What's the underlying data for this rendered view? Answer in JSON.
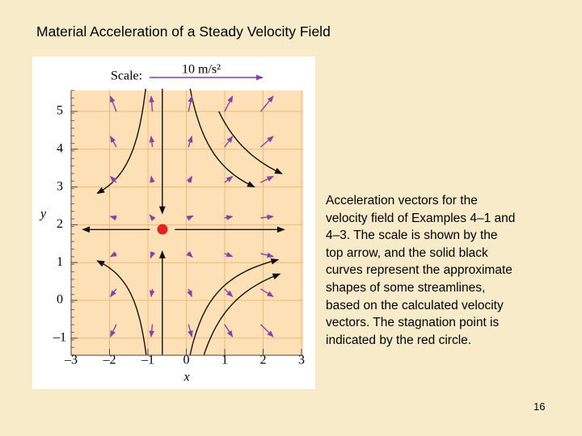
{
  "title": "Material Acceleration of a Steady Velocity Field",
  "figure": {
    "scale_label": "Scale:",
    "scale_value": "10 m/s²",
    "xticks": [
      "–3",
      "–2",
      "–1",
      "0",
      "1",
      "2",
      "3"
    ],
    "yticks": [
      "–1",
      "0",
      "1",
      "2",
      "3",
      "4",
      "5"
    ],
    "x_label": "x",
    "y_label": "y"
  },
  "caption": "Acceleration vectors for the velocity field of Examples 4–1 and 4–3. The scale is shown by the top arrow, and the solid black curves represent the approximate shapes of some streamlines, based on the calculated velocity vectors. The stagnation point is indicated by the red circle.",
  "page_number": "16"
}
